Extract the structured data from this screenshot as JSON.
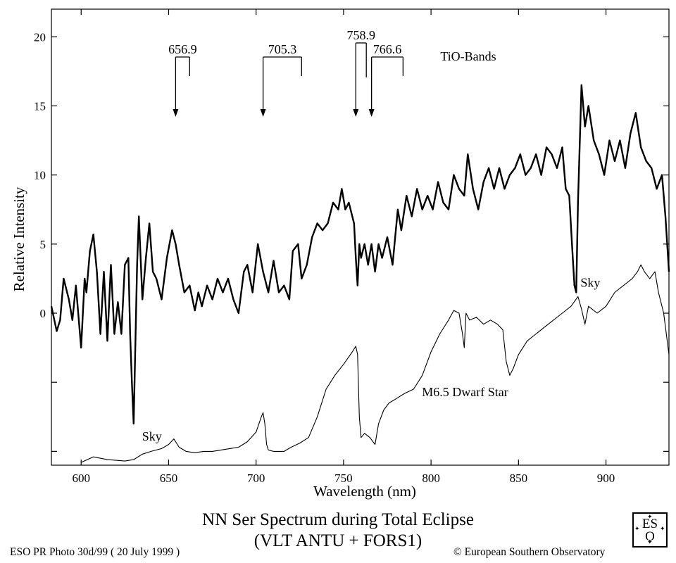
{
  "chart_data": {
    "type": "line",
    "title": "NN Ser Spectrum during Total Eclipse",
    "subtitle": "(VLT ANTU + FORS1)",
    "xlabel": "Wavelength (nm)",
    "ylabel": "Relative Intensity",
    "xlim": [
      583,
      936
    ],
    "ylim": [
      -11,
      22
    ],
    "x_ticks": [
      600,
      650,
      700,
      750,
      800,
      850,
      900
    ],
    "y_tick_values": [
      -10,
      -5,
      0,
      5,
      10,
      15,
      20
    ],
    "y_tick_labels": [
      "",
      "",
      "0",
      "5",
      "10",
      "15",
      "20"
    ],
    "grid": false,
    "series": [
      {
        "name": "NN Ser",
        "x": [
          583,
          586,
          588,
          590,
          593,
          595,
          597,
          600,
          602,
          603,
          605,
          607,
          609,
          611,
          613,
          615,
          617,
          619,
          621,
          623,
          625,
          627,
          628,
          629,
          630,
          632,
          633,
          635,
          637,
          639,
          641,
          643,
          646,
          649,
          652,
          654,
          656,
          659,
          662,
          665,
          667,
          669,
          672,
          675,
          678,
          681,
          684,
          687,
          690,
          693,
          695,
          698,
          701,
          704,
          707,
          710,
          713,
          716,
          719,
          721,
          724,
          726,
          729,
          732,
          735,
          738,
          741,
          744,
          747,
          749,
          751,
          753,
          756,
          757,
          758,
          759,
          760,
          762,
          764,
          766,
          768,
          770,
          772,
          775,
          778,
          781,
          783,
          786,
          789,
          792,
          795,
          798,
          801,
          804,
          807,
          810,
          813,
          816,
          819,
          821,
          824,
          827,
          830,
          833,
          836,
          839,
          842,
          845,
          848,
          851,
          854,
          857,
          860,
          863,
          866,
          869,
          872,
          875,
          877,
          879,
          881,
          882,
          883,
          884,
          886,
          888,
          890,
          893,
          896,
          899,
          902,
          905,
          908,
          911,
          914,
          917,
          920,
          923,
          926,
          929,
          932,
          934,
          936
        ],
        "values": [
          0.5,
          -1.3,
          -0.5,
          2.5,
          1.0,
          -0.5,
          2.0,
          -2.5,
          2.5,
          1.5,
          4.5,
          5.7,
          3.0,
          -1.5,
          3.0,
          -2.0,
          3.5,
          -1.5,
          0.8,
          -1.5,
          3.5,
          4.0,
          -1.5,
          -5.0,
          -8.0,
          3.5,
          7.0,
          1.0,
          4.0,
          6.5,
          3.0,
          2.5,
          1.0,
          4.0,
          6.0,
          5.0,
          3.5,
          1.5,
          2.0,
          0.2,
          1.5,
          0.5,
          2.0,
          1.0,
          2.5,
          1.5,
          2.5,
          1.0,
          0.0,
          3.0,
          3.5,
          1.5,
          5.0,
          3.0,
          1.5,
          3.8,
          1.5,
          2.0,
          1.0,
          4.5,
          5.0,
          2.5,
          3.5,
          5.5,
          6.5,
          6.0,
          6.5,
          8.0,
          7.5,
          9.0,
          7.5,
          8.0,
          6.5,
          4.0,
          2.0,
          5.0,
          4.0,
          5.0,
          3.5,
          5.0,
          3.0,
          5.0,
          4.0,
          5.5,
          3.5,
          7.5,
          6.0,
          8.5,
          7.0,
          9.0,
          7.5,
          8.5,
          7.5,
          9.5,
          8.0,
          7.5,
          10.0,
          9.0,
          8.5,
          11.5,
          9.0,
          7.5,
          9.5,
          10.5,
          9.0,
          10.5,
          9.0,
          10.0,
          10.5,
          11.5,
          10.0,
          10.5,
          11.5,
          10.0,
          12.0,
          11.5,
          10.5,
          12.0,
          9.0,
          8.5,
          4.0,
          2.0,
          1.5,
          8.0,
          16.5,
          13.5,
          15.0,
          12.5,
          11.5,
          10.0,
          12.5,
          11.0,
          12.5,
          10.5,
          13.0,
          14.5,
          12.0,
          11.0,
          10.5,
          9.0,
          10.0,
          7.0,
          3.0
        ]
      },
      {
        "name": "M6.5 Dwarf Star",
        "x": [
          583,
          600,
          607,
          615,
          625,
          630,
          635,
          640,
          646,
          650,
          653,
          656,
          660,
          665,
          670,
          675,
          680,
          685,
          690,
          695,
          700,
          703,
          704,
          705,
          706,
          707,
          710,
          716,
          720,
          725,
          730,
          735,
          740,
          745,
          750,
          755,
          757,
          758,
          759,
          760,
          762,
          765,
          768,
          770,
          773,
          776,
          780,
          785,
          790,
          795,
          800,
          805,
          810,
          813,
          816,
          818,
          819,
          820,
          822,
          826,
          830,
          834,
          838,
          841,
          843,
          845,
          847,
          850,
          855,
          860,
          865,
          870,
          875,
          880,
          884,
          886,
          888,
          890,
          895,
          900,
          905,
          910,
          915,
          918,
          920,
          922,
          925,
          928,
          930,
          933,
          936
        ],
        "values": [
          null,
          -10.8,
          -10.4,
          -10.6,
          -10.7,
          -10.6,
          -10.2,
          -10.0,
          -9.8,
          -9.5,
          -9.1,
          -9.7,
          -10.0,
          -10.1,
          -10.0,
          -10.0,
          -9.9,
          -9.8,
          -9.7,
          -9.3,
          -8.6,
          -7.5,
          -7.2,
          -8.0,
          -9.5,
          -9.9,
          -10.0,
          -10.0,
          -9.7,
          -9.4,
          -9.0,
          -7.5,
          -5.5,
          -4.5,
          -3.7,
          -2.8,
          -2.4,
          -3.0,
          -7.5,
          -9.0,
          -8.7,
          -9.0,
          -9.5,
          -8.0,
          -7.0,
          -6.5,
          -6.2,
          -5.8,
          -5.5,
          -4.5,
          -2.8,
          -1.5,
          -0.5,
          0.2,
          0.0,
          -1.5,
          -2.5,
          0.0,
          -0.5,
          -0.3,
          -0.8,
          -0.5,
          -0.8,
          -1.2,
          -3.5,
          -4.5,
          -4.0,
          -3.0,
          -2.0,
          -1.5,
          -1.0,
          -0.5,
          0.0,
          0.5,
          1.2,
          0.3,
          -0.8,
          0.5,
          0.0,
          0.5,
          1.5,
          2.0,
          2.5,
          3.0,
          3.5,
          3.0,
          2.5,
          3.0,
          1.5,
          0.0,
          -3.0
        ]
      }
    ],
    "annotations": {
      "tio_label": "TiO-Bands",
      "tio_bands": [
        {
          "label": "656.9",
          "start": 654,
          "end": 662
        },
        {
          "label": "705.3",
          "start": 704,
          "end": 726
        },
        {
          "label": "758.9",
          "start": 757,
          "end": 763
        },
        {
          "label": "766.6",
          "start": 766,
          "end": 784
        }
      ],
      "sky_labels": [
        {
          "text": "Sky",
          "x": 630,
          "y": -8.0
        },
        {
          "text": "Sky",
          "x": 883,
          "y": 1.5
        }
      ],
      "star_label": {
        "text": "M6.5 Dwarf Star",
        "x": 790,
        "y": -5.8
      }
    }
  },
  "footer": {
    "photo_id": "ESO PR Photo 30d/99 ( 20 July 1999 )",
    "copyright": "© European Southern Observatory",
    "logo_line1": "ES",
    "logo_line2": "O"
  }
}
